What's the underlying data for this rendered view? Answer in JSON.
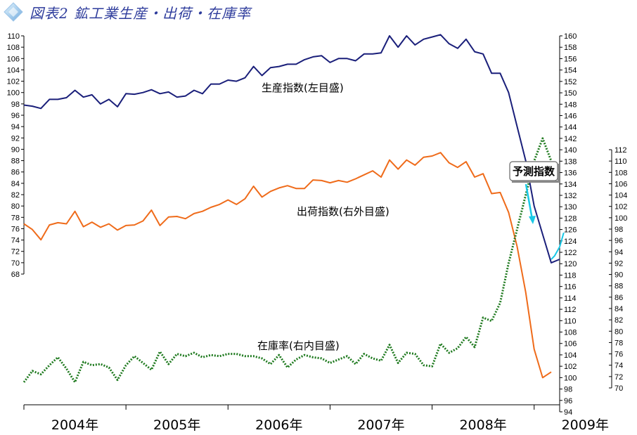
{
  "header": {
    "title": "図表2 鉱工業生産・出荷・在庫率",
    "icon": "diamond-icon"
  },
  "colors": {
    "production": "#1a1f7a",
    "shipments": "#ef6b1a",
    "inventory": "#1f7a1f",
    "forecast": "#19c8e6",
    "title": "#2e3c9c"
  },
  "labels": {
    "production": "生産指数(左目盛)",
    "shipments": "出荷指数(右外目盛)",
    "inventory": "在庫率(右内目盛)",
    "forecast": "予測指数"
  },
  "chart_data": {
    "type": "line",
    "x_labels": [
      "2004年",
      "2005年",
      "2006年",
      "2007年",
      "2008年",
      "2009年"
    ],
    "x_range": [
      2004.0,
      2009.25
    ],
    "axes": {
      "left": {
        "ticks": [
          68,
          70,
          72,
          74,
          76,
          78,
          80,
          82,
          84,
          86,
          88,
          90,
          92,
          94,
          96,
          98,
          100,
          102,
          104,
          106,
          108,
          110
        ],
        "ylim": [
          68,
          110
        ]
      },
      "right_outer": {
        "ticks": [
          94,
          96,
          98,
          100,
          102,
          104,
          106,
          108,
          110,
          112,
          114,
          116,
          118,
          120,
          122,
          124,
          126,
          128,
          130,
          132,
          134,
          136,
          138,
          140,
          142,
          144,
          146,
          148,
          150,
          152,
          154,
          156,
          158,
          160
        ],
        "ylim": [
          94,
          160
        ]
      },
      "right_inner": {
        "ticks": [
          70,
          72,
          74,
          76,
          78,
          80,
          82,
          84,
          86,
          88,
          90,
          92,
          94,
          96,
          98,
          100,
          102,
          104,
          106,
          108,
          110,
          112
        ],
        "ylim": [
          70,
          112
        ]
      }
    },
    "series": [
      {
        "name": "生産指数(左目盛)",
        "axis": "left",
        "style": "solid",
        "points": [
          [
            2004.0,
            97.8
          ],
          [
            2004.083,
            97.6
          ],
          [
            2004.167,
            97.2
          ],
          [
            2004.25,
            98.8
          ],
          [
            2004.333,
            98.8
          ],
          [
            2004.417,
            99.1
          ],
          [
            2004.5,
            100.4
          ],
          [
            2004.583,
            99.2
          ],
          [
            2004.667,
            99.6
          ],
          [
            2004.75,
            98.0
          ],
          [
            2004.833,
            98.8
          ],
          [
            2004.917,
            97.5
          ],
          [
            2005.0,
            99.8
          ],
          [
            2005.083,
            99.7
          ],
          [
            2005.167,
            100.0
          ],
          [
            2005.25,
            100.5
          ],
          [
            2005.333,
            99.8
          ],
          [
            2005.417,
            100.1
          ],
          [
            2005.5,
            99.2
          ],
          [
            2005.583,
            99.4
          ],
          [
            2005.667,
            100.4
          ],
          [
            2005.75,
            99.8
          ],
          [
            2005.833,
            101.5
          ],
          [
            2005.917,
            101.5
          ],
          [
            2006.0,
            102.2
          ],
          [
            2006.083,
            102.0
          ],
          [
            2006.167,
            102.6
          ],
          [
            2006.25,
            104.6
          ],
          [
            2006.333,
            103.0
          ],
          [
            2006.417,
            104.4
          ],
          [
            2006.5,
            104.6
          ],
          [
            2006.583,
            105.0
          ],
          [
            2006.667,
            105.0
          ],
          [
            2006.75,
            105.8
          ],
          [
            2006.833,
            106.3
          ],
          [
            2006.917,
            106.5
          ],
          [
            2007.0,
            105.3
          ],
          [
            2007.083,
            106.0
          ],
          [
            2007.167,
            106.0
          ],
          [
            2007.25,
            105.6
          ],
          [
            2007.333,
            106.8
          ],
          [
            2007.417,
            106.8
          ],
          [
            2007.5,
            107.0
          ],
          [
            2007.583,
            110.0
          ],
          [
            2007.667,
            108.0
          ],
          [
            2007.75,
            110.0
          ],
          [
            2007.833,
            108.4
          ],
          [
            2007.917,
            109.4
          ],
          [
            2008.0,
            109.8
          ],
          [
            2008.083,
            110.2
          ],
          [
            2008.167,
            108.6
          ],
          [
            2008.25,
            107.8
          ],
          [
            2008.333,
            109.4
          ],
          [
            2008.417,
            107.2
          ],
          [
            2008.5,
            106.8
          ],
          [
            2008.583,
            103.4
          ],
          [
            2008.667,
            103.4
          ],
          [
            2008.75,
            100.0
          ],
          [
            2008.833,
            94.0
          ],
          [
            2008.917,
            88.0
          ],
          [
            2009.0,
            80.0
          ],
          [
            2009.083,
            75.0
          ],
          [
            2009.167,
            70.0
          ],
          [
            2009.25,
            70.6
          ]
        ]
      },
      {
        "name": "出荷指数(右外目盛)",
        "axis": "right_outer",
        "style": "solid",
        "points": [
          [
            2004.0,
            127.0
          ],
          [
            2004.083,
            126.0
          ],
          [
            2004.167,
            124.2
          ],
          [
            2004.25,
            126.8
          ],
          [
            2004.333,
            127.2
          ],
          [
            2004.417,
            127.0
          ],
          [
            2004.5,
            129.2
          ],
          [
            2004.583,
            126.5
          ],
          [
            2004.667,
            127.3
          ],
          [
            2004.75,
            126.4
          ],
          [
            2004.833,
            127.0
          ],
          [
            2004.917,
            125.9
          ],
          [
            2005.0,
            126.7
          ],
          [
            2005.083,
            126.8
          ],
          [
            2005.167,
            127.5
          ],
          [
            2005.25,
            129.4
          ],
          [
            2005.333,
            126.7
          ],
          [
            2005.417,
            128.2
          ],
          [
            2005.5,
            128.3
          ],
          [
            2005.583,
            127.9
          ],
          [
            2005.667,
            128.8
          ],
          [
            2005.75,
            129.2
          ],
          [
            2005.833,
            129.9
          ],
          [
            2005.917,
            130.4
          ],
          [
            2006.0,
            131.2
          ],
          [
            2006.083,
            130.4
          ],
          [
            2006.167,
            131.4
          ],
          [
            2006.25,
            133.6
          ],
          [
            2006.333,
            131.7
          ],
          [
            2006.417,
            132.7
          ],
          [
            2006.5,
            133.3
          ],
          [
            2006.583,
            133.7
          ],
          [
            2006.667,
            133.2
          ],
          [
            2006.75,
            133.2
          ],
          [
            2006.833,
            134.7
          ],
          [
            2006.917,
            134.6
          ],
          [
            2007.0,
            134.2
          ],
          [
            2007.083,
            134.6
          ],
          [
            2007.167,
            134.3
          ],
          [
            2007.25,
            134.9
          ],
          [
            2007.333,
            135.6
          ],
          [
            2007.417,
            136.3
          ],
          [
            2007.5,
            135.2
          ],
          [
            2007.583,
            138.2
          ],
          [
            2007.667,
            136.6
          ],
          [
            2007.75,
            138.2
          ],
          [
            2007.833,
            137.3
          ],
          [
            2007.917,
            138.7
          ],
          [
            2008.0,
            138.9
          ],
          [
            2008.083,
            139.5
          ],
          [
            2008.167,
            137.7
          ],
          [
            2008.25,
            136.9
          ],
          [
            2008.333,
            137.9
          ],
          [
            2008.417,
            135.2
          ],
          [
            2008.5,
            135.8
          ],
          [
            2008.583,
            132.3
          ],
          [
            2008.667,
            132.5
          ],
          [
            2008.75,
            129.0
          ],
          [
            2008.833,
            123.0
          ],
          [
            2008.917,
            115.0
          ],
          [
            2009.0,
            105.0
          ],
          [
            2009.083,
            100.0
          ],
          [
            2009.167,
            101.0
          ]
        ]
      },
      {
        "name": "在庫率(右内目盛)",
        "axis": "right_inner",
        "style": "dotted",
        "points": [
          [
            2004.0,
            71.0
          ],
          [
            2004.083,
            73.0
          ],
          [
            2004.167,
            72.4
          ],
          [
            2004.25,
            74.0
          ],
          [
            2004.333,
            75.4
          ],
          [
            2004.417,
            73.4
          ],
          [
            2004.5,
            71.0
          ],
          [
            2004.583,
            74.6
          ],
          [
            2004.667,
            74.0
          ],
          [
            2004.75,
            74.2
          ],
          [
            2004.833,
            73.6
          ],
          [
            2004.917,
            71.4
          ],
          [
            2005.0,
            74.0
          ],
          [
            2005.083,
            75.6
          ],
          [
            2005.167,
            74.4
          ],
          [
            2005.25,
            73.2
          ],
          [
            2005.333,
            76.4
          ],
          [
            2005.417,
            74.2
          ],
          [
            2005.5,
            76.0
          ],
          [
            2005.583,
            75.6
          ],
          [
            2005.667,
            76.2
          ],
          [
            2005.75,
            75.4
          ],
          [
            2005.833,
            75.8
          ],
          [
            2005.917,
            75.6
          ],
          [
            2006.0,
            76.0
          ],
          [
            2006.083,
            76.0
          ],
          [
            2006.167,
            75.6
          ],
          [
            2006.25,
            75.6
          ],
          [
            2006.333,
            75.2
          ],
          [
            2006.417,
            74.2
          ],
          [
            2006.5,
            75.8
          ],
          [
            2006.583,
            73.6
          ],
          [
            2006.667,
            75.0
          ],
          [
            2006.75,
            75.8
          ],
          [
            2006.833,
            75.4
          ],
          [
            2006.917,
            75.2
          ],
          [
            2007.0,
            74.4
          ],
          [
            2007.083,
            75.0
          ],
          [
            2007.167,
            75.6
          ],
          [
            2007.25,
            74.2
          ],
          [
            2007.333,
            76.0
          ],
          [
            2007.417,
            75.2
          ],
          [
            2007.5,
            74.8
          ],
          [
            2007.583,
            77.6
          ],
          [
            2007.667,
            74.4
          ],
          [
            2007.75,
            76.2
          ],
          [
            2007.833,
            76.0
          ],
          [
            2007.917,
            74.0
          ],
          [
            2008.0,
            73.8
          ],
          [
            2008.083,
            77.8
          ],
          [
            2008.167,
            76.2
          ],
          [
            2008.25,
            77.0
          ],
          [
            2008.333,
            79.0
          ],
          [
            2008.417,
            77.2
          ],
          [
            2008.5,
            82.4
          ],
          [
            2008.583,
            81.8
          ],
          [
            2008.667,
            85.0
          ],
          [
            2008.75,
            92.0
          ],
          [
            2008.833,
            98.0
          ],
          [
            2008.917,
            104.0
          ],
          [
            2009.0,
            110.0
          ],
          [
            2009.083,
            114.0
          ],
          [
            2009.167,
            110.0
          ]
        ]
      },
      {
        "name": "予測指数",
        "axis": "left",
        "style": "forecast",
        "points": [
          [
            2009.167,
            70.6
          ],
          [
            2009.2,
            71.2
          ],
          [
            2009.25,
            72.8
          ],
          [
            2009.29,
            75.3
          ]
        ]
      }
    ]
  }
}
